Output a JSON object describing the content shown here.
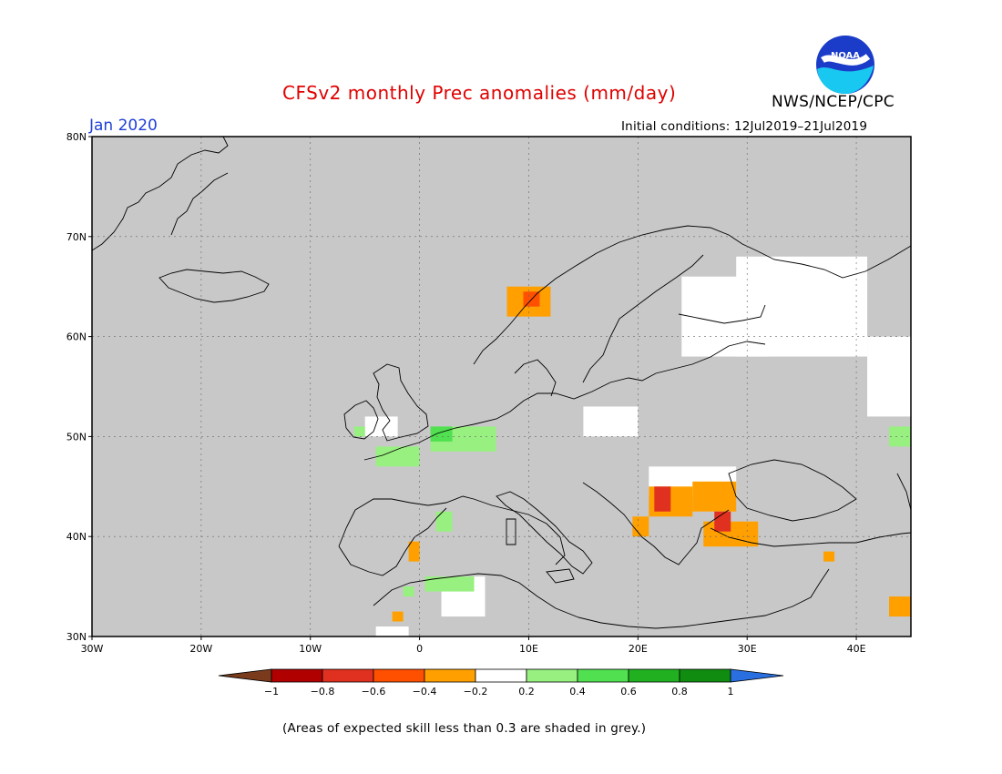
{
  "title": "CFSv2 monthly Prec anomalies (mm/day)",
  "valid_month": "Jan 2020",
  "initial_conditions": "Initial conditions: 12Jul2019–21Jul2019",
  "agency": "NWS/NCEP/CPC",
  "logo_text": "NOAA",
  "footnote": "(Areas of expected skill less than 0.3 are shaded in grey.)",
  "map": {
    "lon_range": [
      -30,
      45
    ],
    "lat_range": [
      30,
      80
    ],
    "lat_labels": [
      "30N",
      "40N",
      "50N",
      "60N",
      "70N",
      "80N"
    ],
    "lat_values": [
      30,
      40,
      50,
      60,
      70,
      80
    ],
    "lon_labels": [
      "30W",
      "20W",
      "10W",
      "0",
      "10E",
      "20E",
      "30E",
      "40E"
    ],
    "lon_values": [
      -30,
      -20,
      -10,
      0,
      10,
      20,
      30,
      40
    ],
    "skill_mask_color": "#c8c8c8",
    "land_outline_color": "#000000"
  },
  "colorbar": {
    "labels": [
      "−1",
      "−0.8",
      "−0.6",
      "−0.4",
      "−0.2",
      "0.2",
      "0.4",
      "0.6",
      "0.8",
      "1"
    ],
    "low_color": "#7a3b1c",
    "high_color": "#2a6fe0",
    "colors": [
      "#b00000",
      "#e03020",
      "#ff5000",
      "#ffa000",
      "#ffffff",
      "#98f080",
      "#50e050",
      "#20b020",
      "#108c10"
    ]
  },
  "anomaly_regions": [
    {
      "name": "norway",
      "lon": [
        8,
        12
      ],
      "lat": [
        62,
        65
      ],
      "color": "#ffa000"
    },
    {
      "name": "norway-core",
      "lon": [
        9.5,
        11
      ],
      "lat": [
        63,
        64.5
      ],
      "color": "#ff5000"
    },
    {
      "name": "balkans-west",
      "lon": [
        21,
        25
      ],
      "lat": [
        42,
        45
      ],
      "color": "#ffa000"
    },
    {
      "name": "balkans-core",
      "lon": [
        21.5,
        23
      ],
      "lat": [
        42.5,
        45
      ],
      "color": "#e03020"
    },
    {
      "name": "bulgaria",
      "lon": [
        25,
        29
      ],
      "lat": [
        42.5,
        45.5
      ],
      "color": "#ffa000"
    },
    {
      "name": "turkey-west",
      "lon": [
        26,
        31
      ],
      "lat": [
        39,
        41.5
      ],
      "color": "#ffa000"
    },
    {
      "name": "turkey-core",
      "lon": [
        27,
        28.5
      ],
      "lat": [
        40.5,
        42.5
      ],
      "color": "#e03020"
    },
    {
      "name": "greece",
      "lon": [
        19.5,
        21
      ],
      "lat": [
        40,
        42
      ],
      "color": "#ffa000"
    },
    {
      "name": "spain-east",
      "lon": [
        -1,
        0
      ],
      "lat": [
        37.5,
        39.5
      ],
      "color": "#ffa000"
    },
    {
      "name": "morocco",
      "lon": [
        -2.5,
        -1.5
      ],
      "lat": [
        31.5,
        32.5
      ],
      "color": "#ffa000"
    },
    {
      "name": "mideast",
      "lon": [
        43,
        45
      ],
      "lat": [
        32,
        34
      ],
      "color": "#ffa000"
    },
    {
      "name": "syria",
      "lon": [
        37,
        38
      ],
      "lat": [
        37.5,
        38.5
      ],
      "color": "#ffa000"
    },
    {
      "name": "france-north",
      "lon": [
        1,
        7
      ],
      "lat": [
        48.5,
        51
      ],
      "color": "#98f080"
    },
    {
      "name": "france-west",
      "lon": [
        -4,
        0
      ],
      "lat": [
        47,
        49
      ],
      "color": "#98f080"
    },
    {
      "name": "france-core",
      "lon": [
        1,
        3
      ],
      "lat": [
        49.5,
        51
      ],
      "color": "#50e050"
    },
    {
      "name": "spain-ne",
      "lon": [
        1.5,
        3
      ],
      "lat": [
        40.5,
        42.5
      ],
      "color": "#98f080"
    },
    {
      "name": "algeria",
      "lon": [
        0.5,
        5
      ],
      "lat": [
        34.5,
        36
      ],
      "color": "#98f080"
    },
    {
      "name": "uk-south",
      "lon": [
        -6,
        -5
      ],
      "lat": [
        50,
        51
      ],
      "color": "#98f080"
    },
    {
      "name": "caucasus",
      "lon": [
        43,
        45
      ],
      "lat": [
        49,
        51
      ],
      "color": "#98f080"
    },
    {
      "name": "spain-south",
      "lon": [
        -1.5,
        -0.5
      ],
      "lat": [
        34,
        35
      ],
      "color": "#98f080"
    }
  ],
  "unmasked_white_regions": [
    {
      "lon": [
        24,
        32
      ],
      "lat": [
        58,
        66
      ]
    },
    {
      "lon": [
        29,
        41
      ],
      "lat": [
        58,
        68
      ]
    },
    {
      "lon": [
        41,
        45
      ],
      "lat": [
        52,
        60
      ]
    },
    {
      "lon": [
        15,
        20
      ],
      "lat": [
        50,
        53
      ]
    },
    {
      "lon": [
        21,
        29
      ],
      "lat": [
        44,
        47
      ]
    },
    {
      "lon": [
        2,
        6
      ],
      "lat": [
        32,
        36
      ]
    },
    {
      "lon": [
        -4,
        -1
      ],
      "lat": [
        30,
        31
      ]
    },
    {
      "lon": [
        -5,
        -2
      ],
      "lat": [
        50,
        52
      ]
    }
  ]
}
